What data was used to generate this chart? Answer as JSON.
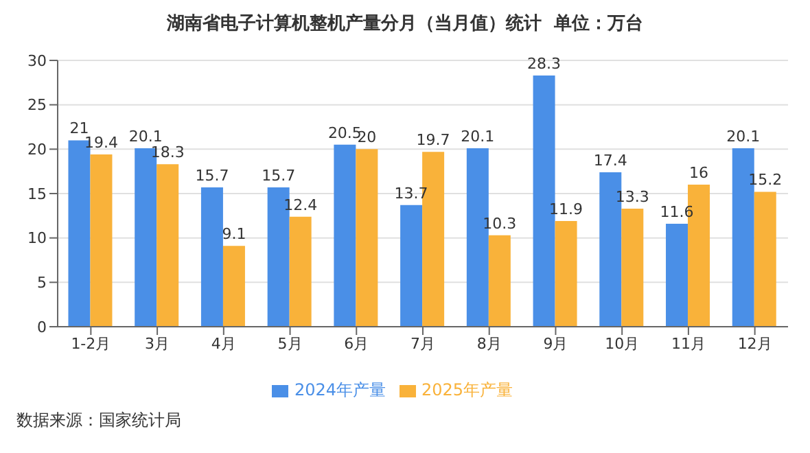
{
  "chart_data": {
    "type": "bar",
    "title": "湖南省电子计算机整机产量分月（当月值）统计  单位：万台",
    "categories": [
      "1-2月",
      "3月",
      "4月",
      "5月",
      "6月",
      "7月",
      "8月",
      "9月",
      "10月",
      "11月",
      "12月"
    ],
    "series": [
      {
        "name": "2024年产量",
        "color": "#4a8fe7",
        "values": [
          21,
          20.1,
          15.7,
          15.7,
          20.5,
          13.7,
          20.1,
          28.3,
          17.4,
          11.6,
          20.1
        ]
      },
      {
        "name": "2025年产量",
        "color": "#f9b23a",
        "values": [
          19.4,
          18.3,
          9.1,
          12.4,
          20,
          19.7,
          10.3,
          11.9,
          13.3,
          16,
          15.2
        ]
      }
    ],
    "ylim": [
      0,
      30
    ],
    "yticks": [
      0,
      5,
      10,
      15,
      20,
      25,
      30
    ],
    "grid": "y",
    "legend": "bottom",
    "data_labels": true,
    "annotations": [
      "数据来源：国家统计局"
    ]
  }
}
